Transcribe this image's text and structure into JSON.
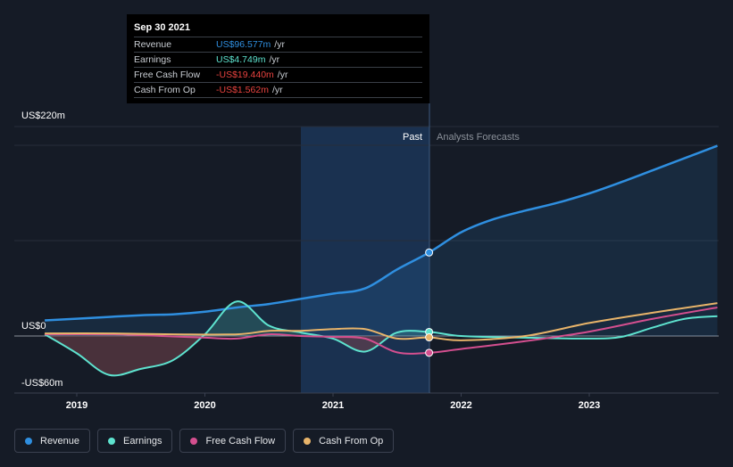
{
  "chart_data": {
    "type": "line",
    "x_ticks": [
      "2019",
      "2020",
      "2021",
      "2022",
      "2023"
    ],
    "y_ticks": [
      "US$220m",
      "US$0",
      "-US$60m"
    ],
    "ylim": [
      -60,
      220
    ],
    "divider_labels": {
      "past": "Past",
      "forecast": "Analysts Forecasts"
    },
    "highlight_date": "2021-09-30",
    "series": [
      {
        "name": "Revenue",
        "color": "#2f8fe0",
        "points": [
          [
            2018.75,
            18
          ],
          [
            2019.0,
            20
          ],
          [
            2019.5,
            24
          ],
          [
            2019.75,
            25
          ],
          [
            2020.0,
            28
          ],
          [
            2020.25,
            33
          ],
          [
            2020.5,
            37
          ],
          [
            2020.75,
            43
          ],
          [
            2021.0,
            49
          ],
          [
            2021.25,
            55
          ],
          [
            2021.5,
            77
          ],
          [
            2021.75,
            96.6
          ],
          [
            2022.0,
            120
          ],
          [
            2022.25,
            135
          ],
          [
            2022.5,
            145
          ],
          [
            2022.75,
            154
          ],
          [
            2023.0,
            165
          ],
          [
            2023.25,
            178
          ],
          [
            2023.5,
            192
          ],
          [
            2023.75,
            206
          ],
          [
            2024.0,
            220
          ]
        ]
      },
      {
        "name": "Earnings",
        "color": "#5ee3cf",
        "points": [
          [
            2018.75,
            2
          ],
          [
            2019.0,
            -20
          ],
          [
            2019.25,
            -45
          ],
          [
            2019.5,
            -38
          ],
          [
            2019.75,
            -28
          ],
          [
            2020.0,
            2
          ],
          [
            2020.25,
            40
          ],
          [
            2020.5,
            12
          ],
          [
            2020.75,
            4
          ],
          [
            2021.0,
            -3
          ],
          [
            2021.25,
            -18
          ],
          [
            2021.5,
            4
          ],
          [
            2021.75,
            4.7
          ],
          [
            2022.0,
            0
          ],
          [
            2022.5,
            -2
          ],
          [
            2023.0,
            -3
          ],
          [
            2023.25,
            -1
          ],
          [
            2023.5,
            10
          ],
          [
            2023.75,
            20
          ],
          [
            2024.0,
            23
          ]
        ]
      },
      {
        "name": "Free Cash Flow",
        "color": "#d44f8f",
        "points": [
          [
            2018.75,
            2
          ],
          [
            2019.25,
            2
          ],
          [
            2019.5,
            1
          ],
          [
            2020.0,
            -2
          ],
          [
            2020.25,
            -3
          ],
          [
            2020.5,
            2
          ],
          [
            2020.75,
            0
          ],
          [
            2021.0,
            -1
          ],
          [
            2021.25,
            -3
          ],
          [
            2021.5,
            -19
          ],
          [
            2021.75,
            -19.4
          ],
          [
            2022.0,
            -15
          ],
          [
            2022.5,
            -6
          ],
          [
            2023.0,
            5
          ],
          [
            2023.5,
            20
          ],
          [
            2024.0,
            33
          ]
        ]
      },
      {
        "name": "Cash From Op",
        "color": "#e8b46a",
        "points": [
          [
            2018.75,
            3
          ],
          [
            2019.25,
            3
          ],
          [
            2019.75,
            2
          ],
          [
            2020.25,
            2
          ],
          [
            2020.5,
            6
          ],
          [
            2020.75,
            6
          ],
          [
            2021.0,
            8
          ],
          [
            2021.25,
            8
          ],
          [
            2021.5,
            -3
          ],
          [
            2021.75,
            -1.6
          ],
          [
            2022.0,
            -5
          ],
          [
            2022.5,
            0
          ],
          [
            2023.0,
            15
          ],
          [
            2023.5,
            27
          ],
          [
            2024.0,
            38
          ]
        ]
      }
    ]
  },
  "tooltip": {
    "date": "Sep 30 2021",
    "rows": [
      {
        "label": "Revenue",
        "value": "US$96.577m",
        "unit": "/yr",
        "color": "#2f8fe0"
      },
      {
        "label": "Earnings",
        "value": "US$4.749m",
        "unit": "/yr",
        "color": "#5ee3cf"
      },
      {
        "label": "Free Cash Flow",
        "value": "-US$19.440m",
        "unit": "/yr",
        "color": "#e8433f"
      },
      {
        "label": "Cash From Op",
        "value": "-US$1.562m",
        "unit": "/yr",
        "color": "#e8433f"
      }
    ]
  },
  "legend": [
    {
      "label": "Revenue",
      "color": "#2f8fe0"
    },
    {
      "label": "Earnings",
      "color": "#5ee3cf"
    },
    {
      "label": "Free Cash Flow",
      "color": "#d44f8f"
    },
    {
      "label": "Cash From Op",
      "color": "#e8b46a"
    }
  ]
}
